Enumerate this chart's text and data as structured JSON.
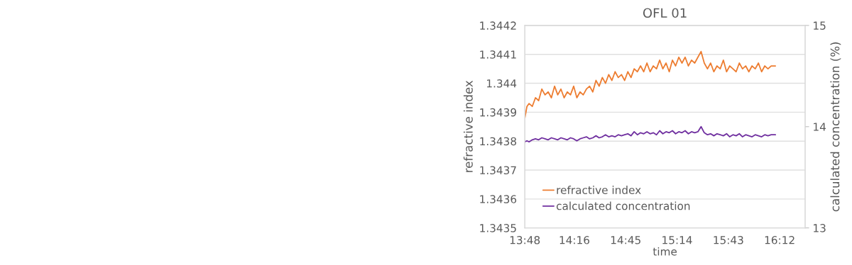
{
  "chart_data": {
    "type": "line",
    "title": "OFL 01",
    "xlabel": "time",
    "ylabel": "refractive index",
    "y2label": "calculated concentration (%)",
    "x": [
      13.8,
      13.82,
      13.84,
      13.87,
      13.9,
      13.93,
      13.96,
      13.99,
      14.02,
      14.05,
      14.08,
      14.11,
      14.14,
      14.17,
      14.2,
      14.23,
      14.26,
      14.29,
      14.32,
      14.35,
      14.38,
      14.41,
      14.44,
      14.47,
      14.5,
      14.53,
      14.56,
      14.59,
      14.62,
      14.65,
      14.68,
      14.71,
      14.74,
      14.77,
      14.8,
      14.83,
      14.86,
      14.89,
      14.92,
      14.95,
      14.98,
      15.01,
      15.04,
      15.07,
      15.1,
      15.13,
      15.16,
      15.19,
      15.22,
      15.25,
      15.28,
      15.31,
      15.34,
      15.37,
      15.4,
      15.43,
      15.46,
      15.49,
      15.52,
      15.55,
      15.58,
      15.61,
      15.64,
      15.67,
      15.7,
      15.73,
      15.76,
      15.79,
      15.82,
      15.85,
      15.88,
      15.91,
      15.94,
      15.97,
      16.0,
      16.03,
      16.06,
      16.09,
      16.12,
      16.16
    ],
    "series": [
      {
        "name": "refractive index",
        "color": "#ed7d31",
        "values": [
          1.34388,
          1.34392,
          1.34393,
          1.34392,
          1.34395,
          1.34394,
          1.34398,
          1.34396,
          1.34397,
          1.34395,
          1.34399,
          1.34396,
          1.34398,
          1.34395,
          1.34397,
          1.34396,
          1.34399,
          1.34395,
          1.34397,
          1.34396,
          1.34398,
          1.34399,
          1.34397,
          1.34401,
          1.34399,
          1.34402,
          1.344,
          1.34403,
          1.34401,
          1.34404,
          1.34402,
          1.34403,
          1.34401,
          1.34404,
          1.34402,
          1.34405,
          1.34404,
          1.34406,
          1.34404,
          1.34407,
          1.34404,
          1.34406,
          1.34405,
          1.34408,
          1.34405,
          1.34407,
          1.34404,
          1.34408,
          1.34406,
          1.34409,
          1.34407,
          1.34409,
          1.34406,
          1.34408,
          1.34407,
          1.34409,
          1.34411,
          1.34407,
          1.34405,
          1.34407,
          1.34404,
          1.34406,
          1.34405,
          1.34408,
          1.34404,
          1.34406,
          1.34405,
          1.34404,
          1.34407,
          1.34405,
          1.34406,
          1.34404,
          1.34406,
          1.34405,
          1.34407,
          1.34404,
          1.34406,
          1.34405,
          1.34406,
          1.34406
        ]
      },
      {
        "name": "calculated concentration",
        "color": "#7030a0",
        "axis": "y2",
        "values": [
          13.85,
          13.86,
          13.85,
          13.87,
          13.88,
          13.87,
          13.89,
          13.88,
          13.87,
          13.89,
          13.88,
          13.87,
          13.89,
          13.88,
          13.87,
          13.89,
          13.88,
          13.86,
          13.88,
          13.89,
          13.9,
          13.88,
          13.89,
          13.91,
          13.89,
          13.9,
          13.92,
          13.9,
          13.91,
          13.9,
          13.92,
          13.91,
          13.92,
          13.93,
          13.91,
          13.95,
          13.92,
          13.94,
          13.93,
          13.95,
          13.93,
          13.94,
          13.92,
          13.96,
          13.93,
          13.95,
          13.94,
          13.96,
          13.93,
          13.95,
          13.94,
          13.96,
          13.93,
          13.95,
          13.94,
          13.95,
          14.0,
          13.94,
          13.92,
          13.93,
          13.91,
          13.93,
          13.92,
          13.91,
          13.93,
          13.9,
          13.92,
          13.91,
          13.93,
          13.9,
          13.92,
          13.91,
          13.9,
          13.92,
          13.91,
          13.9,
          13.92,
          13.91,
          13.92,
          13.92
        ]
      }
    ],
    "xlim": [
      13.8,
      16.44
    ],
    "xticks": [
      {
        "value": 13.8,
        "label": "13:48"
      },
      {
        "value": 14.2667,
        "label": "14:16"
      },
      {
        "value": 14.75,
        "label": "14:45"
      },
      {
        "value": 15.2333,
        "label": "15:14"
      },
      {
        "value": 15.7167,
        "label": "15:43"
      },
      {
        "value": 16.2,
        "label": "16:12"
      }
    ],
    "ylim": [
      1.3435,
      1.3442
    ],
    "yticks": [
      1.3435,
      1.3436,
      1.3437,
      1.3438,
      1.3439,
      1.344,
      1.3441,
      1.3442
    ],
    "y2lim": [
      13,
      15
    ],
    "y2ticks": [
      13,
      14,
      15
    ],
    "grid": "y",
    "legend": "bottom left",
    "marker": "none",
    "line_style": "solid"
  }
}
